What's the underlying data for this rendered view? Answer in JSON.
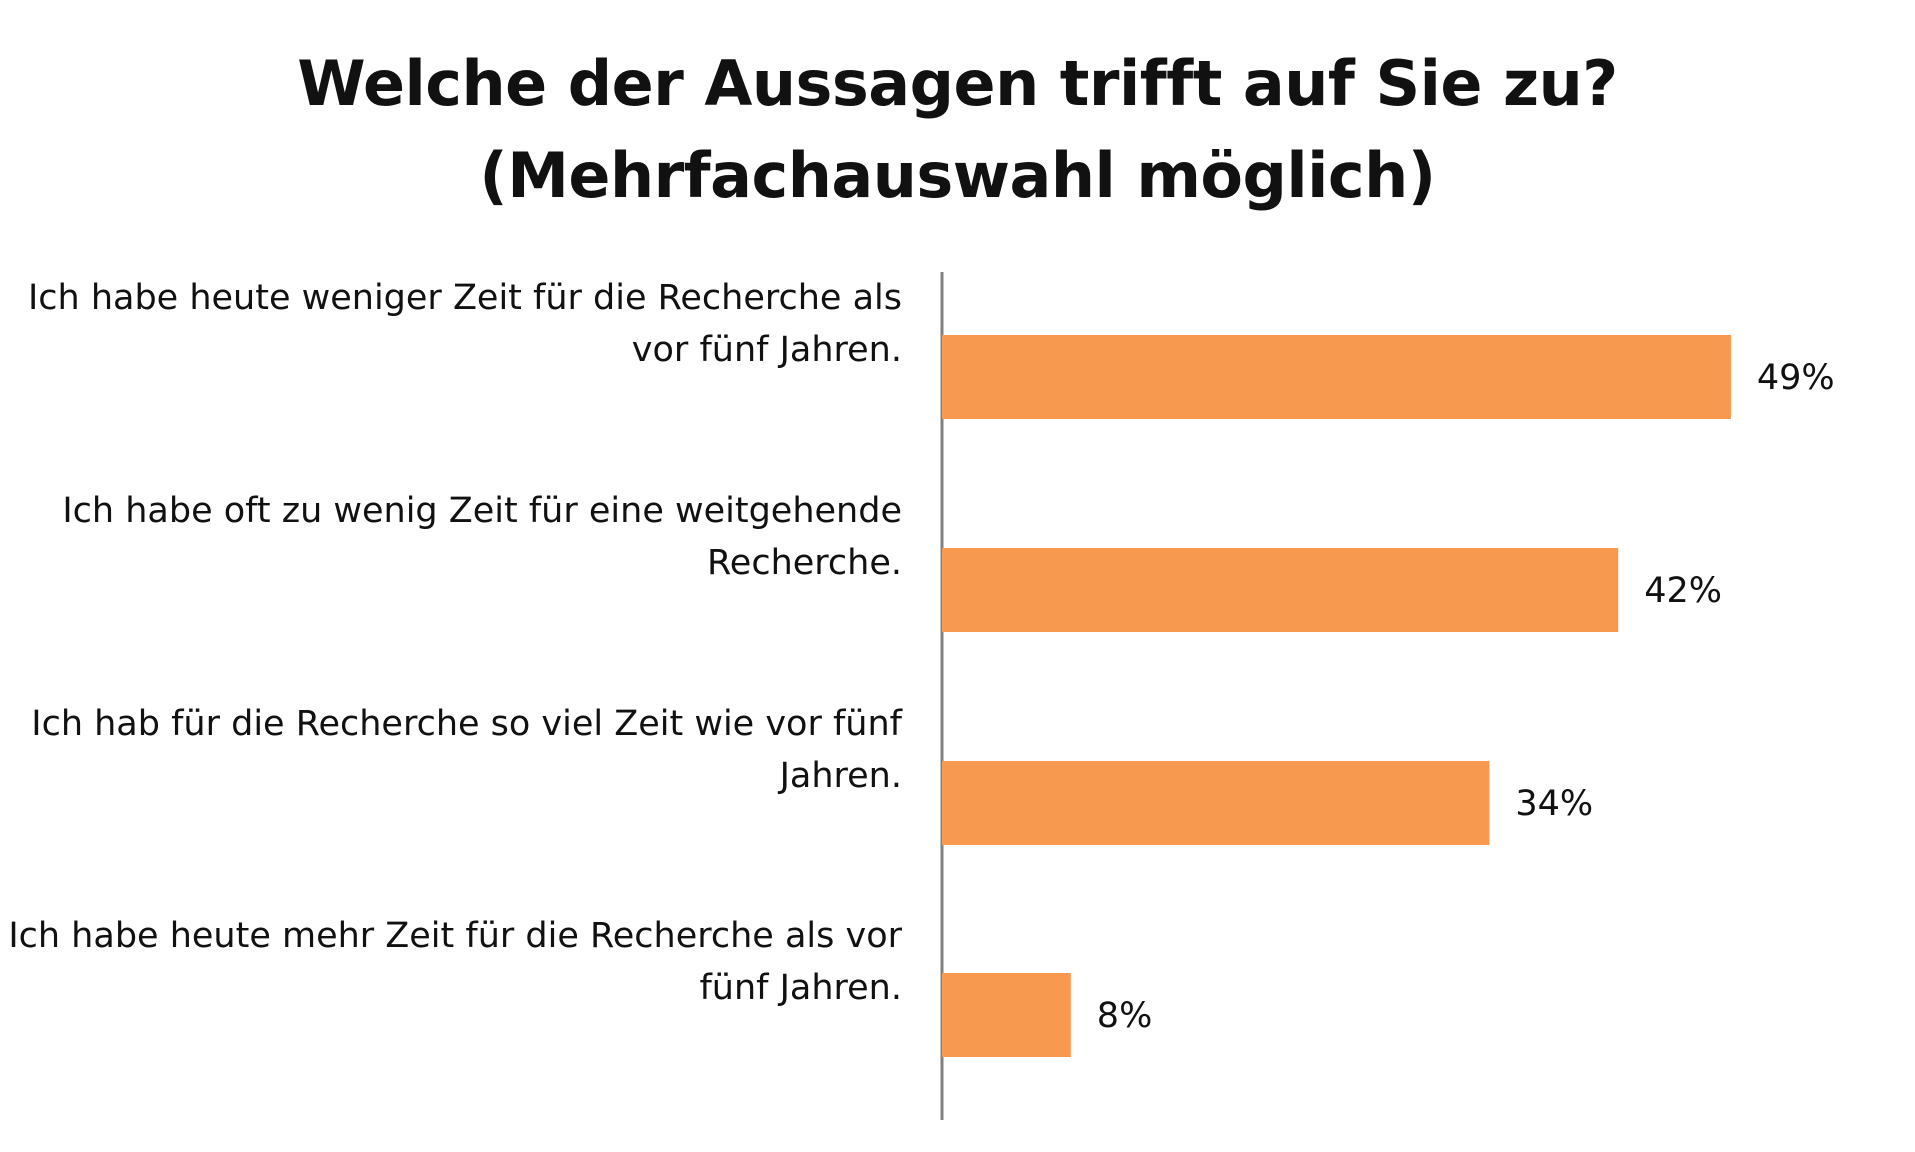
{
  "chart_data": {
    "type": "bar",
    "orientation": "horizontal",
    "title_lines": [
      "Welche der Aussagen trifft auf Sie zu?",
      "(Mehrfachauswahl möglich)"
    ],
    "categories": [
      [
        "Ich habe heute weniger Zeit für die Recherche als",
        "vor fünf Jahren."
      ],
      [
        "Ich habe oft zu wenig Zeit für eine weitgehende",
        "Recherche."
      ],
      [
        "Ich hab für die Recherche so viel Zeit wie vor fünf",
        "Jahren."
      ],
      [
        "Ich habe heute mehr Zeit für die Recherche als vor",
        "fünf Jahren."
      ]
    ],
    "values": [
      49,
      42,
      34,
      8
    ],
    "value_labels": [
      "49%",
      "42%",
      "34%",
      "8%"
    ],
    "xlim": [
      0,
      60
    ],
    "grid": false,
    "legend": "none",
    "bar_color": "#F79A4F",
    "axis_color": "#808080"
  }
}
